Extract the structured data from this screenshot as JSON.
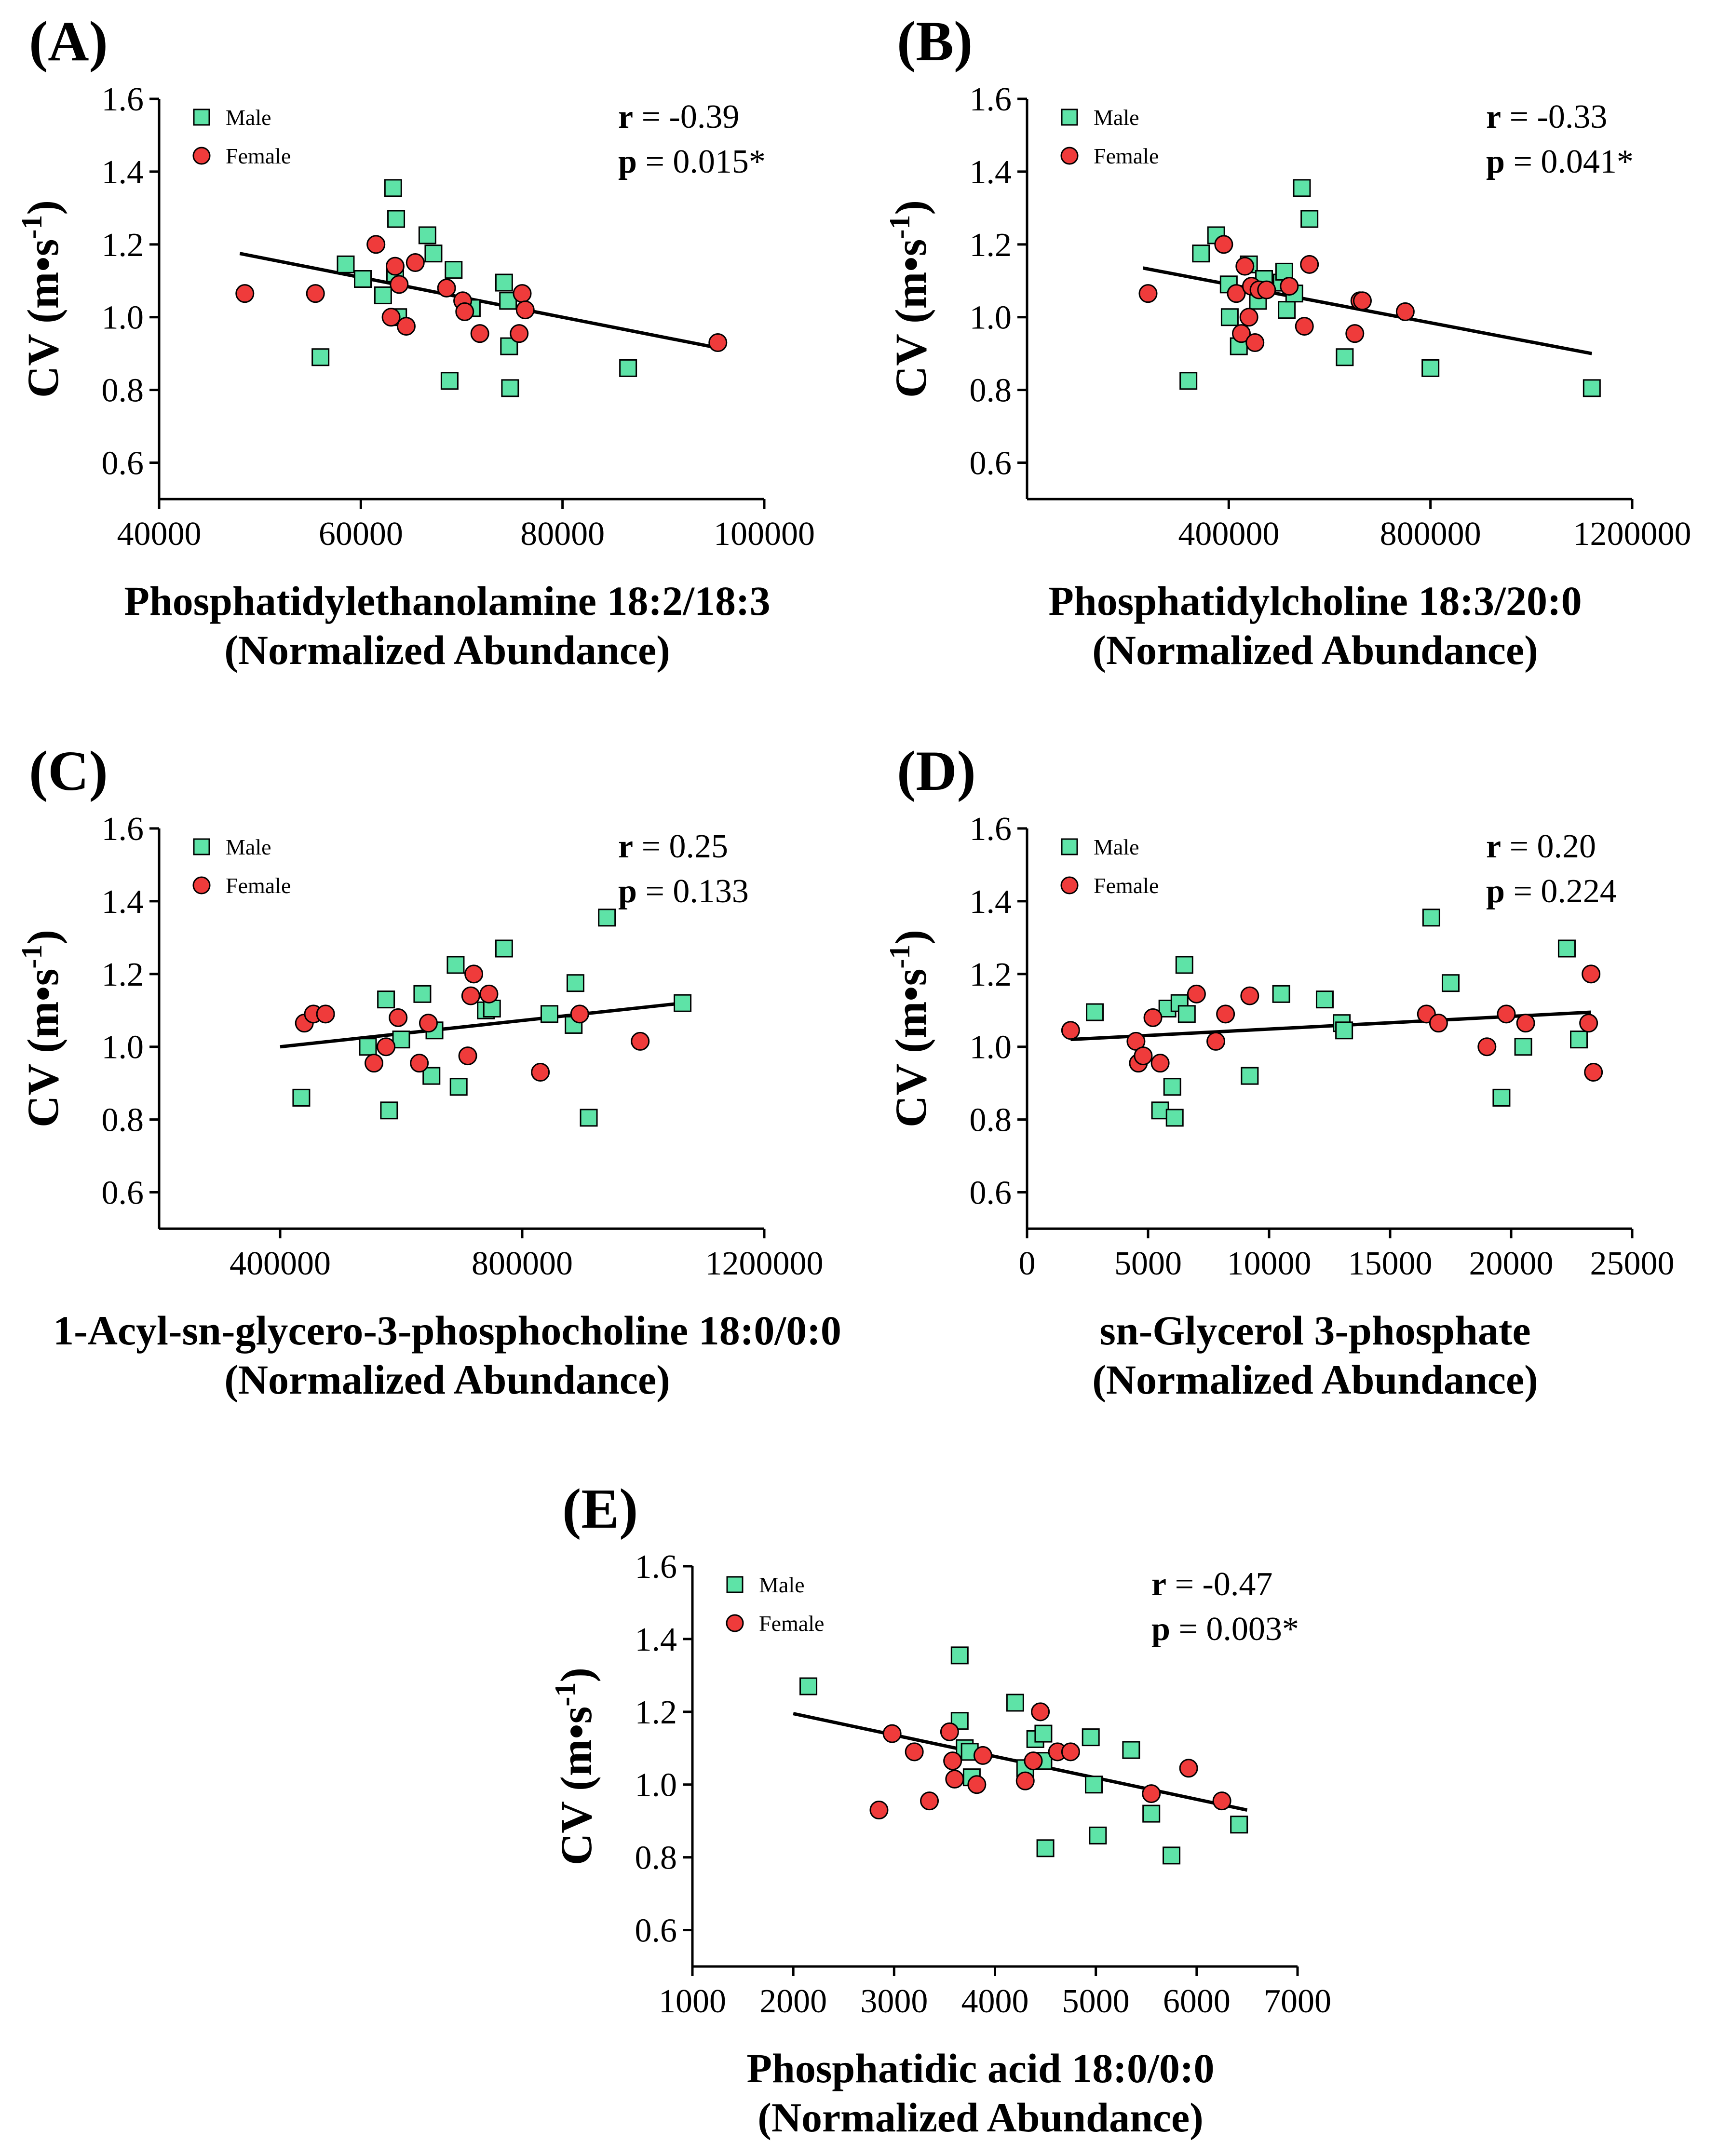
{
  "figure": {
    "legend": {
      "male_label": "Male",
      "female_label": "Female"
    },
    "colors": {
      "male": "#5ee3a7",
      "female": "#ef3b3b",
      "line": "#000000"
    }
  },
  "chart_data": [
    {
      "type": "scatter",
      "panel": "(A)",
      "ylabel": "CV (m•s-1)",
      "ylabel_main": "CV (m•s",
      "ylabel_sup": "-1",
      "ylabel_close": ")",
      "xlabel_line1": "Phosphatidylethanolamine 18:2/18:3",
      "xlabel_line2": "(Normalized Abundance)",
      "stats": {
        "r_label": "r",
        "r_value": " = -0.39",
        "p_label": "p",
        "p_value": " = 0.015*"
      },
      "xlim": [
        40000,
        100000
      ],
      "ylim": [
        0.5,
        1.6
      ],
      "xticks": [
        40000,
        60000,
        80000,
        100000
      ],
      "xtick_labels": [
        "40000",
        "60000",
        "80000",
        "100000"
      ],
      "yticks": [
        0.6,
        0.8,
        1.0,
        1.2,
        1.4,
        1.6
      ],
      "ytick_labels": [
        "0.6",
        "0.8",
        "1.0",
        "1.2",
        "1.4",
        "1.6"
      ],
      "regression": {
        "x": [
          48000,
          95500
        ],
        "y": [
          1.175,
          0.915
        ]
      },
      "series": [
        {
          "name": "Male",
          "x": [
            56000,
            58500,
            60200,
            62200,
            63200,
            63400,
            63500,
            63700,
            66600,
            67200,
            68800,
            69200,
            71000,
            74200,
            74600,
            74700,
            74800,
            86500
          ],
          "y": [
            0.89,
            1.145,
            1.105,
            1.06,
            1.355,
            1.12,
            1.27,
            1.0,
            1.225,
            1.175,
            0.825,
            1.13,
            1.025,
            1.095,
            1.045,
            0.92,
            0.805,
            0.86
          ]
        },
        {
          "name": "Female",
          "x": [
            48500,
            55500,
            61500,
            63000,
            63400,
            63800,
            64500,
            65400,
            68500,
            70100,
            70300,
            71800,
            75700,
            76000,
            76300,
            95400
          ],
          "y": [
            1.065,
            1.065,
            1.2,
            1.0,
            1.14,
            1.09,
            0.975,
            1.15,
            1.08,
            1.045,
            1.015,
            0.955,
            0.955,
            1.065,
            1.02,
            0.93
          ]
        }
      ]
    },
    {
      "type": "scatter",
      "panel": "(B)",
      "ylabel": "CV (m•s-1)",
      "ylabel_main": "CV (m•s",
      "ylabel_sup": "-1",
      "ylabel_close": ")",
      "xlabel_line1": "Phosphatidylcholine 18:3/20:0",
      "xlabel_line2": "(Normalized Abundance)",
      "stats": {
        "r_label": "r",
        "r_value": " = -0.33",
        "p_label": "p",
        "p_value": " = 0.041*"
      },
      "xlim": [
        0,
        1200000
      ],
      "ylim": [
        0.5,
        1.6
      ],
      "xticks": [
        400000,
        800000,
        1200000
      ],
      "xtick_labels": [
        "400000",
        "800000",
        "1200000"
      ],
      "yticks": [
        0.6,
        0.8,
        1.0,
        1.2,
        1.4,
        1.6
      ],
      "ytick_labels": [
        "0.6",
        "0.8",
        "1.0",
        "1.2",
        "1.4",
        "1.6"
      ],
      "regression": {
        "x": [
          230000,
          1120000
        ],
        "y": [
          1.135,
          0.9
        ]
      },
      "series": [
        {
          "name": "Male",
          "x": [
            320000,
            345000,
            375000,
            400000,
            402000,
            420000,
            440000,
            458000,
            470000,
            505000,
            510000,
            515000,
            530000,
            545000,
            560000,
            630000,
            800000,
            1120000
          ],
          "y": [
            0.825,
            1.175,
            1.225,
            1.09,
            1.0,
            0.92,
            1.145,
            1.045,
            1.105,
            1.095,
            1.125,
            1.02,
            1.065,
            1.355,
            1.27,
            0.89,
            0.86,
            0.805
          ]
        },
        {
          "name": "Female",
          "x": [
            240000,
            390000,
            415000,
            425000,
            432000,
            440000,
            445000,
            452000,
            460000,
            475000,
            520000,
            550000,
            560000,
            650000,
            660000,
            665000,
            750000
          ],
          "y": [
            1.065,
            1.2,
            1.065,
            0.955,
            1.14,
            1.0,
            1.085,
            0.93,
            1.075,
            1.075,
            1.085,
            0.975,
            1.145,
            0.955,
            1.045,
            1.045,
            1.015
          ]
        }
      ]
    },
    {
      "type": "scatter",
      "panel": "(C)",
      "ylabel": "CV (m•s-1)",
      "ylabel_main": "CV (m•s",
      "ylabel_sup": "-1",
      "ylabel_close": ")",
      "xlabel_line1": "1-Acyl-sn-glycero-3-phosphocholine 18:0/0:0",
      "xlabel_line2": "(Normalized Abundance)",
      "stats": {
        "r_label": "r",
        "r_value": " = 0.25",
        "p_label": "p",
        "p_value": " = 0.133"
      },
      "xlim": [
        200000,
        1200000
      ],
      "ylim": [
        0.5,
        1.6
      ],
      "xticks": [
        400000,
        800000,
        1200000
      ],
      "xtick_labels": [
        "400000",
        "800000",
        "1200000"
      ],
      "yticks": [
        0.6,
        0.8,
        1.0,
        1.2,
        1.4,
        1.6
      ],
      "ytick_labels": [
        "0.6",
        "0.8",
        "1.0",
        "1.2",
        "1.4",
        "1.6"
      ],
      "regression": {
        "x": [
          400000,
          1065000
        ],
        "y": [
          1.0,
          1.12
        ]
      },
      "series": [
        {
          "name": "Male",
          "x": [
            435000,
            545000,
            575000,
            580000,
            600000,
            635000,
            650000,
            655000,
            690000,
            695000,
            740000,
            750000,
            770000,
            845000,
            885000,
            888000,
            910000,
            940000,
            1065000
          ],
          "y": [
            0.86,
            1.0,
            1.13,
            0.825,
            1.02,
            1.145,
            0.92,
            1.045,
            1.225,
            0.89,
            1.1,
            1.105,
            1.27,
            1.09,
            1.06,
            1.175,
            0.805,
            1.355,
            1.12
          ]
        },
        {
          "name": "Female",
          "x": [
            440000,
            455000,
            475000,
            555000,
            575000,
            595000,
            630000,
            645000,
            710000,
            715000,
            720000,
            745000,
            830000,
            895000,
            995000
          ],
          "y": [
            1.065,
            1.09,
            1.09,
            0.955,
            1.0,
            1.08,
            0.955,
            1.065,
            0.975,
            1.14,
            1.2,
            1.145,
            0.93,
            1.09,
            1.015
          ]
        }
      ]
    },
    {
      "type": "scatter",
      "panel": "(D)",
      "ylabel": "CV (m•s-1)",
      "ylabel_main": "CV (m•s",
      "ylabel_sup": "-1",
      "ylabel_close": ")",
      "xlabel_line1": "sn-Glycerol 3-phosphate",
      "xlabel_line2": "(Normalized Abundance)",
      "stats": {
        "r_label": "r",
        "r_value": " = 0.20",
        "p_label": "p",
        "p_value": " = 0.224"
      },
      "xlim": [
        0,
        25000
      ],
      "ylim": [
        0.5,
        1.6
      ],
      "xticks": [
        0,
        5000,
        10000,
        15000,
        20000,
        25000
      ],
      "xtick_labels": [
        "0",
        "5000",
        "10000",
        "15000",
        "20000",
        "25000"
      ],
      "yticks": [
        0.6,
        0.8,
        1.0,
        1.2,
        1.4,
        1.6
      ],
      "ytick_labels": [
        "0.6",
        "0.8",
        "1.0",
        "1.2",
        "1.4",
        "1.6"
      ],
      "regression": {
        "x": [
          1800,
          23300
        ],
        "y": [
          1.02,
          1.095
        ]
      },
      "series": [
        {
          "name": "Male",
          "x": [
            2800,
            5500,
            5800,
            6000,
            6100,
            6300,
            6500,
            6600,
            9200,
            10500,
            12300,
            13000,
            13100,
            16700,
            17500,
            19600,
            20500,
            22300,
            22800
          ],
          "y": [
            1.095,
            0.825,
            1.105,
            0.89,
            0.805,
            1.12,
            1.225,
            1.09,
            0.92,
            1.145,
            1.13,
            1.065,
            1.045,
            1.355,
            1.175,
            0.86,
            1.0,
            1.27,
            1.02
          ]
        },
        {
          "name": "Female",
          "x": [
            1800,
            4500,
            4600,
            4800,
            5200,
            5500,
            7000,
            7800,
            8200,
            9200,
            16500,
            17000,
            19000,
            19800,
            20600,
            23200,
            23300,
            23400
          ],
          "y": [
            1.045,
            1.015,
            0.955,
            0.975,
            1.08,
            0.955,
            1.145,
            1.015,
            1.09,
            1.14,
            1.09,
            1.065,
            1.0,
            1.09,
            1.065,
            1.065,
            1.2,
            0.93
          ]
        }
      ]
    },
    {
      "type": "scatter",
      "panel": "(E)",
      "ylabel": "CV (m•s-1)",
      "ylabel_main": "CV (m•s",
      "ylabel_sup": "-1",
      "ylabel_close": ")",
      "xlabel_line1": "Phosphatidic acid 18:0/0:0",
      "xlabel_line2": "(Normalized Abundance)",
      "stats": {
        "r_label": "r",
        "r_value": " = -0.47",
        "p_label": "p",
        "p_value": " = 0.003*"
      },
      "xlim": [
        1000,
        7000
      ],
      "ylim": [
        0.5,
        1.6
      ],
      "xticks": [
        1000,
        2000,
        3000,
        4000,
        5000,
        6000,
        7000
      ],
      "xtick_labels": [
        "1000",
        "2000",
        "3000",
        "4000",
        "5000",
        "6000",
        "7000"
      ],
      "yticks": [
        0.6,
        0.8,
        1.0,
        1.2,
        1.4,
        1.6
      ],
      "ytick_labels": [
        "0.6",
        "0.8",
        "1.0",
        "1.2",
        "1.4",
        "1.6"
      ],
      "regression": {
        "x": [
          2000,
          6500
        ],
        "y": [
          1.195,
          0.93
        ]
      },
      "series": [
        {
          "name": "Male",
          "x": [
            2150,
            3650,
            3650,
            3700,
            3750,
            3770,
            4200,
            4300,
            4400,
            4480,
            4480,
            4500,
            4950,
            4980,
            5020,
            5350,
            5550,
            5750,
            6420
          ],
          "y": [
            1.27,
            1.175,
            1.355,
            1.1,
            1.09,
            1.02,
            1.225,
            1.045,
            1.125,
            1.14,
            1.065,
            0.825,
            1.13,
            1.0,
            0.86,
            1.095,
            0.92,
            0.805,
            0.89
          ]
        },
        {
          "name": "Female",
          "x": [
            2850,
            2980,
            3200,
            3350,
            3550,
            3580,
            3600,
            3820,
            3880,
            4300,
            4380,
            4450,
            4620,
            4750,
            5550,
            5920,
            6250
          ],
          "y": [
            0.93,
            1.14,
            1.09,
            0.955,
            1.145,
            1.065,
            1.015,
            1.0,
            1.08,
            1.01,
            1.065,
            1.2,
            1.09,
            1.09,
            0.975,
            1.045,
            0.955
          ]
        }
      ]
    }
  ]
}
